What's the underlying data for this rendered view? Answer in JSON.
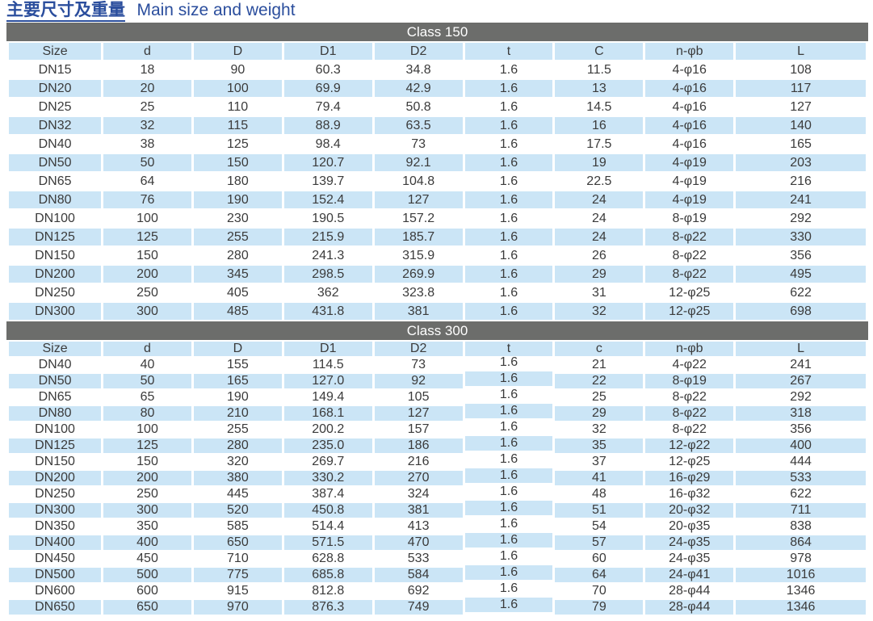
{
  "title": {
    "zh": "主要尺寸及重量",
    "en": "Main size and weight"
  },
  "colors": {
    "title_blue": "#2b4e9d",
    "row_blue": "#cbe5f6",
    "bar_gray": "#6c6d6b",
    "text_dark": "#3b3b3b"
  },
  "tables": [
    {
      "class_label": "Class 150",
      "columns": [
        "Size",
        "d",
        "D",
        "D1",
        "D2",
        "t",
        "C",
        "n-φb",
        "L"
      ],
      "rows": [
        [
          "DN15",
          "18",
          "90",
          "60.3",
          "34.8",
          "1.6",
          "11.5",
          "4-φ16",
          "108"
        ],
        [
          "DN20",
          "20",
          "100",
          "69.9",
          "42.9",
          "1.6",
          "13",
          "4-φ16",
          "117"
        ],
        [
          "DN25",
          "25",
          "110",
          "79.4",
          "50.8",
          "1.6",
          "14.5",
          "4-φ16",
          "127"
        ],
        [
          "DN32",
          "32",
          "115",
          "88.9",
          "63.5",
          "1.6",
          "16",
          "4-φ16",
          "140"
        ],
        [
          "DN40",
          "38",
          "125",
          "98.4",
          "73",
          "1.6",
          "17.5",
          "4-φ16",
          "165"
        ],
        [
          "DN50",
          "50",
          "150",
          "120.7",
          "92.1",
          "1.6",
          "19",
          "4-φ19",
          "203"
        ],
        [
          "DN65",
          "64",
          "180",
          "139.7",
          "104.8",
          "1.6",
          "22.5",
          "4-φ19",
          "216"
        ],
        [
          "DN80",
          "76",
          "190",
          "152.4",
          "127",
          "1.6",
          "24",
          "4-φ19",
          "241"
        ],
        [
          "DN100",
          "100",
          "230",
          "190.5",
          "157.2",
          "1.6",
          "24",
          "8-φ19",
          "292"
        ],
        [
          "DN125",
          "125",
          "255",
          "215.9",
          "185.7",
          "1.6",
          "24",
          "8-φ22",
          "330"
        ],
        [
          "DN150",
          "150",
          "280",
          "241.3",
          "315.9",
          "1.6",
          "26",
          "8-φ22",
          "356"
        ],
        [
          "DN200",
          "200",
          "345",
          "298.5",
          "269.9",
          "1.6",
          "29",
          "8-φ22",
          "495"
        ],
        [
          "DN250",
          "250",
          "405",
          "362",
          "323.8",
          "1.6",
          "31",
          "12-φ25",
          "622"
        ],
        [
          "DN300",
          "300",
          "485",
          "431.8",
          "381",
          "1.6",
          "32",
          "12-φ25",
          "698"
        ]
      ]
    },
    {
      "class_label": "Class 300",
      "columns": [
        "Size",
        "d",
        "D",
        "D1",
        "D2",
        "t",
        "c",
        "n-φb",
        "L"
      ],
      "rows": [
        [
          "DN40",
          "40",
          "155",
          "114.5",
          "73",
          "1.6",
          "21",
          "4-φ22",
          "241"
        ],
        [
          "DN50",
          "50",
          "165",
          "127.0",
          "92",
          "1.6",
          "22",
          "8-φ19",
          "267"
        ],
        [
          "DN65",
          "65",
          "190",
          "149.4",
          "105",
          "1.6",
          "25",
          "8-φ22",
          "292"
        ],
        [
          "DN80",
          "80",
          "210",
          "168.1",
          "127",
          "1.6",
          "29",
          "8-φ22",
          "318"
        ],
        [
          "DN100",
          "100",
          "255",
          "200.2",
          "157",
          "1.6",
          "32",
          "8-φ22",
          "356"
        ],
        [
          "DN125",
          "125",
          "280",
          "235.0",
          "186",
          "1.6",
          "35",
          "12-φ22",
          "400"
        ],
        [
          "DN150",
          "150",
          "320",
          "269.7",
          "216",
          "1.6",
          "37",
          "12-φ25",
          "444"
        ],
        [
          "DN200",
          "200",
          "380",
          "330.2",
          "270",
          "1.6",
          "41",
          "16-φ29",
          "533"
        ],
        [
          "DN250",
          "250",
          "445",
          "387.4",
          "324",
          "1.6",
          "48",
          "16-φ32",
          "622"
        ],
        [
          "DN300",
          "300",
          "520",
          "450.8",
          "381",
          "1.6",
          "51",
          "20-φ32",
          "711"
        ],
        [
          "DN350",
          "350",
          "585",
          "514.4",
          "413",
          "1.6",
          "54",
          "20-φ35",
          "838"
        ],
        [
          "DN400",
          "400",
          "650",
          "571.5",
          "470",
          "1.6",
          "57",
          "24-φ35",
          "864"
        ],
        [
          "DN450",
          "450",
          "710",
          "628.8",
          "533",
          "1.6",
          "60",
          "24-φ35",
          "978"
        ],
        [
          "DN500",
          "500",
          "775",
          "685.8",
          "584",
          "1.6",
          "64",
          "24-φ41",
          "1016"
        ],
        [
          "DN600",
          "600",
          "915",
          "812.8",
          "692",
          "1.6",
          "70",
          "28-φ44",
          "1346"
        ],
        [
          "DN650",
          "650",
          "970",
          "876.3",
          "749",
          "1.6",
          "79",
          "28-φ44",
          "1346"
        ]
      ]
    }
  ]
}
